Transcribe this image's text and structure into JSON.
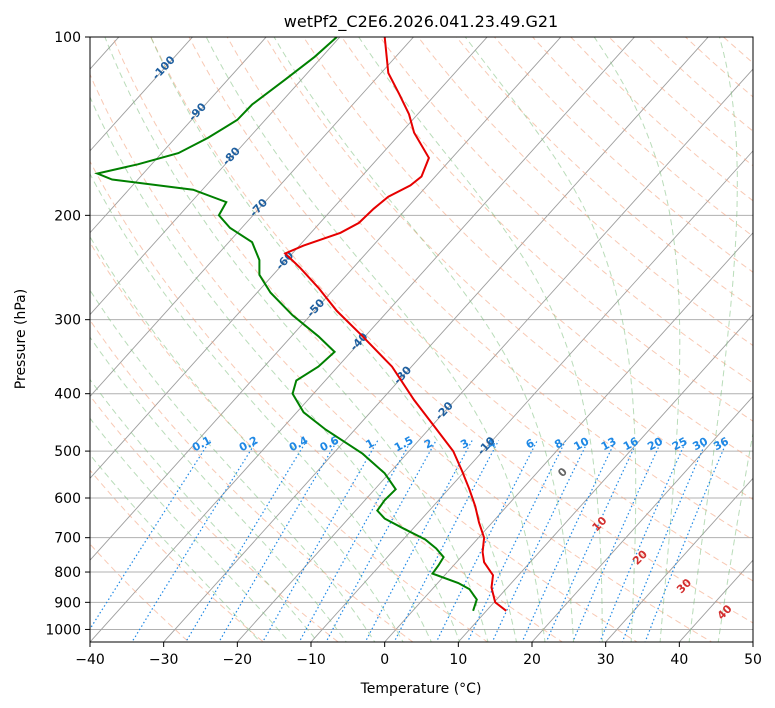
{
  "chart_data": {
    "type": "line",
    "title": "wetPf2_C2E6.2026.041.23.49.G21",
    "xlabel": "Temperature (°C)",
    "ylabel": "Pressure (hPa)",
    "xlim": [
      -40,
      50
    ],
    "ylim": [
      1050,
      100
    ],
    "x_ticks": [
      -40,
      -30,
      -20,
      -10,
      0,
      10,
      20,
      30,
      40,
      50
    ],
    "x_tick_labels": [
      "−40",
      "−30",
      "−20",
      "−10",
      "0",
      "10",
      "20",
      "30",
      "40",
      "50"
    ],
    "y_ticks": [
      100,
      200,
      300,
      400,
      500,
      600,
      700,
      800,
      900,
      1000
    ],
    "y_tick_labels": [
      "100",
      "200",
      "300",
      "400",
      "500",
      "600",
      "700",
      "800",
      "900",
      "1000"
    ],
    "isotherm_labels": [
      {
        "value": -100,
        "text": "-100"
      },
      {
        "value": -90,
        "text": "-90"
      },
      {
        "value": -80,
        "text": "-80"
      },
      {
        "value": -70,
        "text": "-70"
      },
      {
        "value": -60,
        "text": "-60"
      },
      {
        "value": -50,
        "text": "-50"
      },
      {
        "value": -40,
        "text": "-40"
      },
      {
        "value": -30,
        "text": "-30"
      },
      {
        "value": -20,
        "text": "-20"
      },
      {
        "value": -10,
        "text": "-10"
      }
    ],
    "mixing_ratio_labels": [
      {
        "value": 0.1,
        "text": "0.1"
      },
      {
        "value": 0.2,
        "text": "0.2"
      },
      {
        "value": 0.4,
        "text": "0.4"
      },
      {
        "value": 0.6,
        "text": "0.6"
      },
      {
        "value": 1,
        "text": "1"
      },
      {
        "value": 1.5,
        "text": "1.5"
      },
      {
        "value": 2,
        "text": "2"
      },
      {
        "value": 3,
        "text": "3"
      },
      {
        "value": 4,
        "text": "4"
      },
      {
        "value": 6,
        "text": "6"
      },
      {
        "value": 8,
        "text": "8"
      },
      {
        "value": 10,
        "text": "10"
      },
      {
        "value": 13,
        "text": "13"
      },
      {
        "value": 16,
        "text": "16"
      },
      {
        "value": 20,
        "text": "20"
      },
      {
        "value": 25,
        "text": "25"
      },
      {
        "value": 30,
        "text": "30"
      },
      {
        "value": 36,
        "text": "36"
      }
    ],
    "moist_adiabat_labels": [
      {
        "value": 0,
        "text": "0"
      },
      {
        "value": 10,
        "text": "10"
      },
      {
        "value": 20,
        "text": "20"
      },
      {
        "value": 30,
        "text": "30"
      },
      {
        "value": 40,
        "text": "40"
      }
    ],
    "series": [
      {
        "name": "Temperature",
        "color": "#e60000",
        "points": [
          [
            16.5,
            930
          ],
          [
            15.0,
            900
          ],
          [
            14.5,
            850
          ],
          [
            14.7,
            810
          ],
          [
            13.5,
            770
          ],
          [
            13.3,
            740
          ],
          [
            13.5,
            700
          ],
          [
            12.8,
            660
          ],
          [
            12.3,
            620
          ],
          [
            11.5,
            580
          ],
          [
            10.5,
            540
          ],
          [
            9.3,
            500
          ],
          [
            6.5,
            450
          ],
          [
            4.0,
            410
          ],
          [
            1.0,
            360
          ],
          [
            -3.0,
            320
          ],
          [
            -6.5,
            290
          ],
          [
            -9.0,
            265
          ],
          [
            -11.5,
            245
          ],
          [
            -13.5,
            232
          ],
          [
            -11.0,
            225
          ],
          [
            -6.0,
            214
          ],
          [
            -3.5,
            206
          ],
          [
            -1.5,
            195
          ],
          [
            0.5,
            186
          ],
          [
            3.5,
            178
          ],
          [
            5.0,
            172
          ],
          [
            6.0,
            160
          ],
          [
            4.0,
            145
          ],
          [
            3.3,
            135
          ],
          [
            2.0,
            125
          ],
          [
            0.5,
            115
          ],
          [
            0,
            100
          ]
        ]
      },
      {
        "name": "Dewpoint",
        "color": "#008000",
        "points": [
          [
            12.0,
            930
          ],
          [
            12.5,
            890
          ],
          [
            11.5,
            855
          ],
          [
            10.0,
            835
          ],
          [
            6.5,
            805
          ],
          [
            7.3,
            780
          ],
          [
            8.0,
            755
          ],
          [
            7.0,
            730
          ],
          [
            5.5,
            705
          ],
          [
            2.5,
            675
          ],
          [
            0.0,
            650
          ],
          [
            -1.0,
            630
          ],
          [
            0.0,
            605
          ],
          [
            1.5,
            580
          ],
          [
            0.0,
            545
          ],
          [
            -3.0,
            505
          ],
          [
            -8.0,
            460
          ],
          [
            -11.0,
            430
          ],
          [
            -12.5,
            400
          ],
          [
            -12.0,
            380
          ],
          [
            -9.0,
            360
          ],
          [
            -6.8,
            340
          ],
          [
            -9.0,
            320
          ],
          [
            -12.5,
            295
          ],
          [
            -15.5,
            270
          ],
          [
            -17.0,
            252
          ],
          [
            -17.0,
            238
          ],
          [
            -18.0,
            222
          ],
          [
            -21.0,
            210
          ],
          [
            -22.5,
            200
          ],
          [
            -21.5,
            190
          ],
          [
            -26.0,
            181
          ],
          [
            -37.0,
            174
          ],
          [
            -39.0,
            170
          ],
          [
            -33.5,
            164
          ],
          [
            -28.0,
            157
          ],
          [
            -24.0,
            148
          ],
          [
            -20.0,
            138
          ],
          [
            -18.0,
            130
          ],
          [
            -13.5,
            118
          ],
          [
            -9.5,
            108
          ],
          [
            -6.5,
            100
          ]
        ]
      }
    ],
    "colors": {
      "temperature": "#e60000",
      "dewpoint": "#008000",
      "isotherm_labels": "#1f5f9f",
      "mixing_ratio": "#1e88e5",
      "moist_adiabat_labels": "#d32f2f",
      "zero_label": "#666666"
    }
  }
}
